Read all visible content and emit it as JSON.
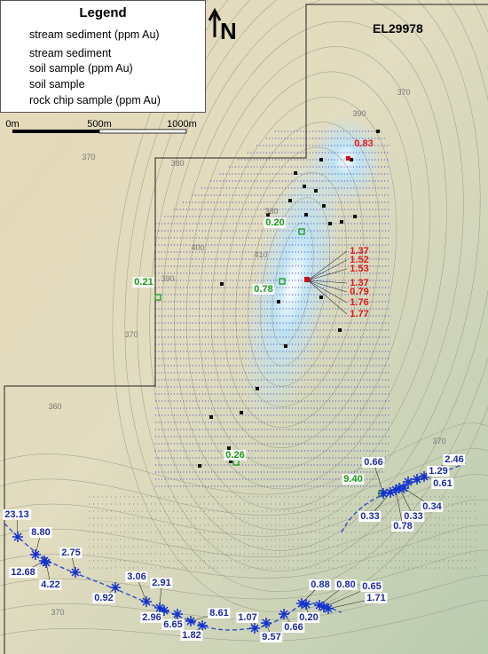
{
  "legend": {
    "title": "Legend",
    "items": [
      "stream sediment (ppm Au)",
      "stream sediment",
      "soil sample (ppm Au)",
      "soil sample",
      "rock chip sample (ppm Au)"
    ]
  },
  "scale": [
    "0m",
    "500m",
    "1000m"
  ],
  "north": "N",
  "tenement": "EL29978",
  "contour_labels": [
    "390",
    "370",
    "370",
    "380",
    "400",
    "410",
    "390",
    "370",
    "360",
    "370",
    "370",
    "380"
  ],
  "rock_chip_labels": [
    "0.83",
    "1.37",
    "1.52",
    "1.53",
    "1.37",
    "0.79",
    "1.76",
    "1.77"
  ],
  "soil_labels": [
    "0.20",
    "0.21",
    "0.78",
    "0.26",
    "9.40"
  ],
  "stream_labels": [
    "0.66",
    "2.46",
    "1.29",
    "0.61",
    "0.34",
    "0.33",
    "0.78",
    "0.33",
    "23.13",
    "8.80",
    "2.75",
    "12.68",
    "4.22",
    "0.92",
    "3.06",
    "2.91",
    "2.96",
    "8.61",
    "6.65",
    "1.82",
    "1.07",
    "0.88",
    "0.80",
    "0.65",
    "1.71",
    "0.20",
    "0.66",
    "9.57"
  ]
}
